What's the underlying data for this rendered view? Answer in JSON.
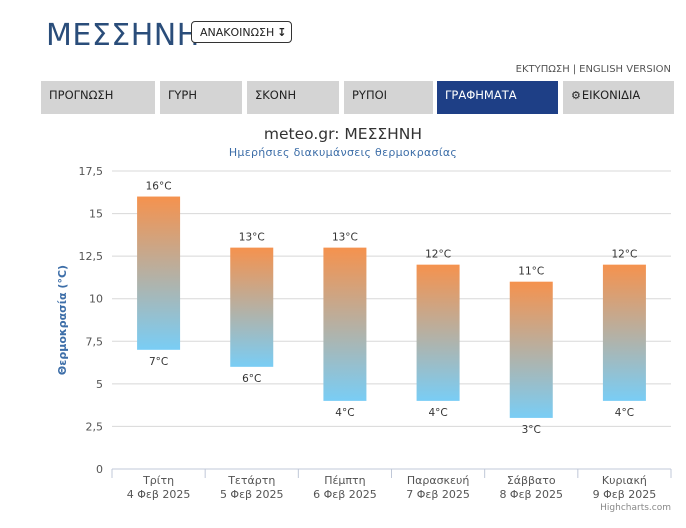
{
  "header": {
    "title": "ΜΕΣΣΗΝΗ",
    "announce_label": "ΑΝΑΚΟΙΝΩΣΗ",
    "announce_icon": "↧",
    "print_label": "ΕΚΤΥΠΩΣΗ",
    "separator": "|",
    "english_label": "ENGLISH VERSION"
  },
  "tabs": [
    {
      "label": "ΠΡΟΓΝΩΣΗ"
    },
    {
      "label": "ΓΥΡΗ"
    },
    {
      "label": "ΣΚΟΝΗ"
    },
    {
      "label": "ΡΥΠΟΙ"
    },
    {
      "label": "ΓΡΑΦΗΜΑΤΑ"
    },
    {
      "label": "ΕΙΚΟΝΙΔΙΑ",
      "icon": "gear-icon"
    }
  ],
  "colors": {
    "tab_active": "#1e3f86",
    "tab_inactive": "#d4d4d4",
    "bar_top": "#f5924e",
    "bar_bottom": "#79cdf5",
    "title_blue": "#2a4d7a",
    "axis_title": "#3d6ea8"
  },
  "chart_data": {
    "type": "columnrange",
    "title": "meteo.gr: ΜΕΣΣΗΝΗ",
    "subtitle": "Ημερήσιες διακυμάνσεις θερμοκρασίας",
    "ylabel": "Θερμοκρασία (°C)",
    "ylim": [
      0,
      17.5
    ],
    "yticks": [
      "0",
      "2,5",
      "5",
      "7,5",
      "10",
      "12,5",
      "15",
      "17,5"
    ],
    "grid": true,
    "categories": [
      {
        "day": "Τρίτη",
        "date": "4 Φεβ 2025"
      },
      {
        "day": "Τετάρτη",
        "date": "5 Φεβ 2025"
      },
      {
        "day": "Πέμπτη",
        "date": "6 Φεβ 2025"
      },
      {
        "day": "Παρασκευή",
        "date": "7 Φεβ 2025"
      },
      {
        "day": "Σάββατο",
        "date": "8 Φεβ 2025"
      },
      {
        "day": "Κυριακή",
        "date": "9 Φεβ 2025"
      }
    ],
    "low": [
      7,
      6,
      4,
      4,
      3,
      4
    ],
    "high": [
      16,
      13,
      13,
      12,
      11,
      12
    ],
    "low_labels": [
      "7°C",
      "6°C",
      "4°C",
      "4°C",
      "3°C",
      "4°C"
    ],
    "high_labels": [
      "16°C",
      "13°C",
      "13°C",
      "12°C",
      "11°C",
      "12°C"
    ]
  },
  "credits": "Highcharts.com"
}
